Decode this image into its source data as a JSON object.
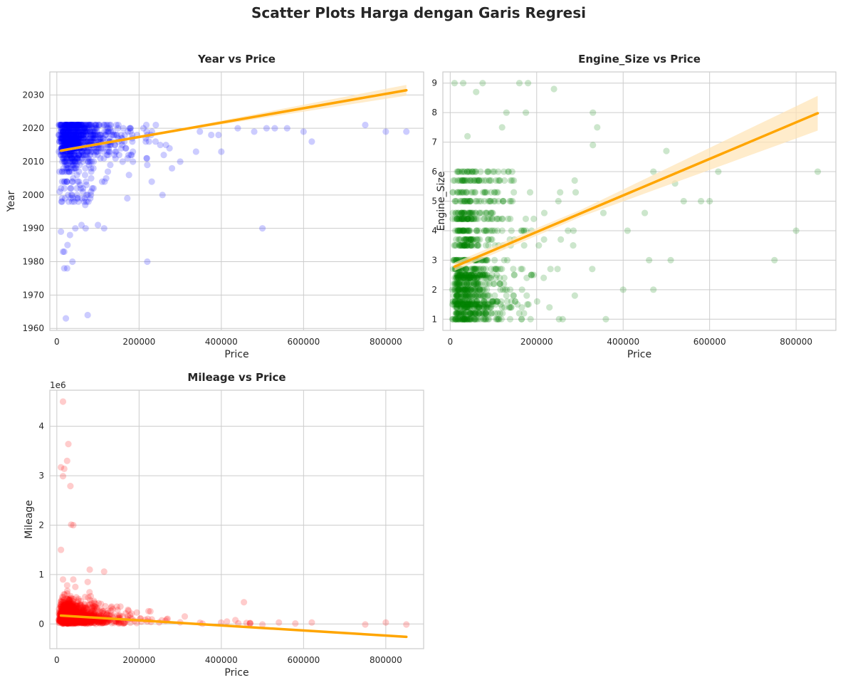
{
  "figure": {
    "title": "Scatter Plots Harga dengan Garis Regresi"
  },
  "colors": {
    "regression": "#ffa500",
    "band": "#ffe4b5",
    "grid": "#cccccc",
    "text": "#262626"
  },
  "chart_data": [
    {
      "type": "scatter",
      "title": "Year vs Price",
      "xlabel": "Price",
      "ylabel": "Year",
      "color": "#0000ff",
      "xlim": [
        -17000,
        892000
      ],
      "ylim": [
        1959.4,
        2036.9
      ],
      "xticks": [
        0,
        200000,
        400000,
        600000,
        800000
      ],
      "xtick_labels": [
        "0",
        "200000",
        "400000",
        "600000",
        "800000"
      ],
      "yticks": [
        1960,
        1970,
        1980,
        1990,
        2000,
        2010,
        2020,
        2030
      ],
      "ytick_labels": [
        "1960",
        "1970",
        "1980",
        "1990",
        "2000",
        "2010",
        "2020",
        "2030"
      ],
      "regression": {
        "x": [
          10000,
          850000
        ],
        "y": [
          2013.3,
          2031.4
        ],
        "ci_halfwidth": [
          0.35,
          1.5
        ]
      },
      "outliers": [
        [
          18000,
          1978
        ],
        [
          25000,
          1978
        ],
        [
          38000,
          1980
        ],
        [
          32000,
          1988
        ],
        [
          26000,
          1985
        ],
        [
          45000,
          1990
        ],
        [
          60000,
          1991
        ],
        [
          70000,
          1990
        ],
        [
          100000,
          1991
        ],
        [
          115000,
          1990
        ],
        [
          75000,
          2000
        ],
        [
          120000,
          2005
        ],
        [
          220000,
          1980
        ],
        [
          500000,
          1990
        ],
        [
          400000,
          2013
        ],
        [
          22000,
          1963
        ],
        [
          75000,
          1964
        ],
        [
          18000,
          1983
        ],
        [
          15000,
          1983
        ],
        [
          10000,
          1989
        ],
        [
          620000,
          2016
        ],
        [
          750000,
          2021
        ],
        [
          800000,
          2019
        ],
        [
          850000,
          2019
        ],
        [
          600000,
          2019
        ],
        [
          560000,
          2020
        ],
        [
          530000,
          2020
        ],
        [
          510000,
          2020
        ],
        [
          480000,
          2019
        ],
        [
          440000,
          2020
        ],
        [
          300000,
          2010
        ],
        [
          280000,
          2008
        ],
        [
          220000,
          2009
        ],
        [
          160000,
          2010
        ],
        [
          185000,
          2010
        ],
        [
          130000,
          2009
        ],
        [
          140000,
          2012
        ],
        [
          240000,
          2016
        ],
        [
          260000,
          2012
        ]
      ],
      "cluster": {
        "count": 900,
        "price_peak": 45000,
        "price_max": 460000,
        "y_center": 2017,
        "y_spread": 3.5,
        "y_range": [
          1993,
          2021
        ]
      }
    },
    {
      "type": "scatter",
      "title": "Engine_Size vs Price",
      "xlabel": "Price",
      "ylabel": "Engine_Size",
      "color": "#008000",
      "xlim": [
        -17000,
        892000
      ],
      "ylim": [
        0.62,
        9.38
      ],
      "xticks": [
        0,
        200000,
        400000,
        600000,
        800000
      ],
      "xtick_labels": [
        "0",
        "200000",
        "400000",
        "600000",
        "800000"
      ],
      "yticks": [
        1,
        2,
        3,
        4,
        5,
        6,
        7,
        8,
        9
      ],
      "ytick_labels": [
        "1",
        "2",
        "3",
        "4",
        "5",
        "6",
        "7",
        "8",
        "9"
      ],
      "regression": {
        "x": [
          10000,
          850000
        ],
        "y": [
          2.78,
          7.98
        ],
        "ci_halfwidth": [
          0.12,
          0.55
        ]
      },
      "outliers": [
        [
          10000,
          9
        ],
        [
          30000,
          9
        ],
        [
          75000,
          9
        ],
        [
          160000,
          9
        ],
        [
          180000,
          9
        ],
        [
          60000,
          8.7
        ],
        [
          240000,
          8.8
        ],
        [
          130000,
          8
        ],
        [
          175000,
          8
        ],
        [
          330000,
          8
        ],
        [
          40000,
          7.2
        ],
        [
          120000,
          7.5
        ],
        [
          340000,
          7.5
        ],
        [
          330000,
          6.9
        ],
        [
          500000,
          6.7
        ],
        [
          620000,
          6
        ],
        [
          850000,
          6
        ],
        [
          520000,
          5.6
        ],
        [
          800000,
          4
        ],
        [
          750000,
          3
        ],
        [
          600000,
          5
        ],
        [
          580000,
          5
        ],
        [
          540000,
          5
        ],
        [
          450000,
          4.6
        ],
        [
          460000,
          3
        ],
        [
          470000,
          2
        ],
        [
          510000,
          3
        ],
        [
          360000,
          1
        ],
        [
          410000,
          4
        ],
        [
          400000,
          2
        ]
      ],
      "cluster": {
        "count": 1100,
        "price_peak": 45000,
        "price_max": 470000,
        "levels": [
          1,
          1.2,
          1.4,
          1.5,
          1.6,
          1.8,
          2,
          2.2,
          2.4,
          2.5,
          2.7,
          3,
          3.5,
          3.7,
          4,
          4.4,
          4.6,
          5,
          5.3,
          5.7,
          6
        ]
      }
    },
    {
      "type": "scatter",
      "title": "Mileage vs Price",
      "xlabel": "Price",
      "ylabel": "Mileage",
      "offset_label": "1e6",
      "color": "#ff0000",
      "xlim": [
        -17000,
        892000
      ],
      "ylim": [
        -500000,
        4730000
      ],
      "xticks": [
        0,
        200000,
        400000,
        600000,
        800000
      ],
      "xtick_labels": [
        "0",
        "200000",
        "400000",
        "600000",
        "800000"
      ],
      "yticks": [
        0,
        1000000,
        2000000,
        3000000,
        4000000
      ],
      "ytick_labels": [
        "0",
        "1",
        "2",
        "3",
        "4"
      ],
      "regression": {
        "x": [
          10000,
          850000
        ],
        "y": [
          170000,
          -260000
        ],
        "ci_halfwidth": [
          8000,
          20000
        ]
      },
      "outliers": [
        [
          15000,
          4500000
        ],
        [
          28000,
          3640000
        ],
        [
          25000,
          3300000
        ],
        [
          10000,
          3170000
        ],
        [
          18000,
          3140000
        ],
        [
          15000,
          2990000
        ],
        [
          33000,
          2790000
        ],
        [
          35000,
          2010000
        ],
        [
          40000,
          2000000
        ],
        [
          10000,
          1500000
        ],
        [
          80000,
          1100000
        ],
        [
          115000,
          1060000
        ],
        [
          15000,
          900000
        ],
        [
          40000,
          900000
        ],
        [
          75000,
          850000
        ],
        [
          45000,
          750000
        ],
        [
          455000,
          440000
        ],
        [
          620000,
          30000
        ],
        [
          750000,
          -10000
        ],
        [
          800000,
          30000
        ],
        [
          850000,
          -10000
        ],
        [
          540000,
          30000
        ],
        [
          580000,
          10000
        ],
        [
          500000,
          -10000
        ],
        [
          470000,
          10000
        ]
      ],
      "cluster": {
        "count": 1300,
        "price_peak": 40000,
        "price_max": 470000,
        "mileage_scale": 250000
      }
    }
  ]
}
